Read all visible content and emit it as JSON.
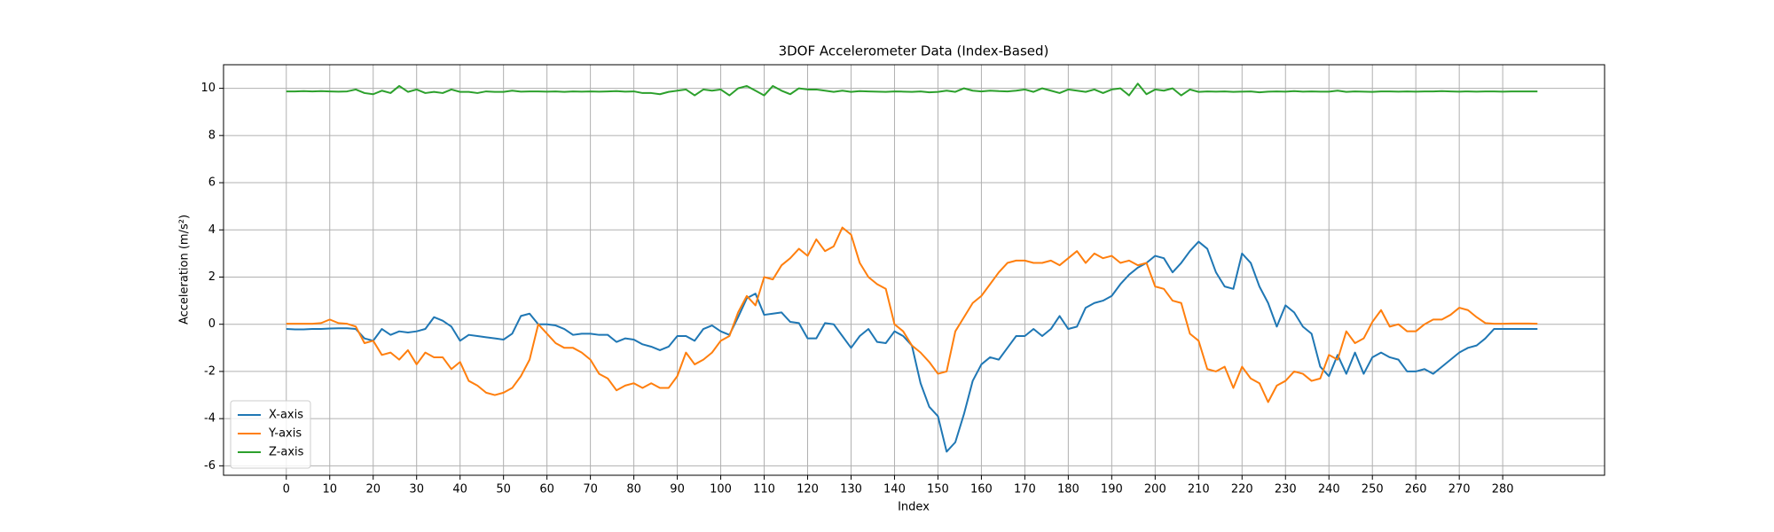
{
  "chart_data": {
    "type": "line",
    "title": "3DOF Accelerometer Data (Index-Based)",
    "x_label": "Index",
    "y_label": "Acceleration (m/s²)",
    "x": [
      0,
      2,
      4,
      6,
      8,
      10,
      12,
      14,
      16,
      18,
      20,
      22,
      24,
      26,
      28,
      30,
      32,
      34,
      36,
      38,
      40,
      42,
      44,
      46,
      48,
      50,
      52,
      54,
      56,
      58,
      60,
      62,
      64,
      66,
      68,
      70,
      72,
      74,
      76,
      78,
      80,
      82,
      84,
      86,
      88,
      90,
      92,
      94,
      96,
      98,
      100,
      102,
      104,
      106,
      108,
      110,
      112,
      114,
      116,
      118,
      120,
      122,
      124,
      126,
      128,
      130,
      132,
      134,
      136,
      138,
      140,
      142,
      144,
      146,
      148,
      150,
      152,
      154,
      156,
      158,
      160,
      162,
      164,
      166,
      168,
      170,
      172,
      174,
      176,
      178,
      180,
      182,
      184,
      186,
      188,
      190,
      192,
      194,
      196,
      198,
      200,
      202,
      204,
      206,
      208,
      210,
      212,
      214,
      216,
      218,
      220,
      222,
      224,
      226,
      228,
      230,
      232,
      234,
      236,
      238,
      240,
      242,
      244,
      246,
      248,
      250,
      252,
      254,
      256,
      258,
      260,
      262,
      264,
      266,
      268,
      270,
      272,
      274,
      276,
      278,
      280,
      282,
      284,
      286,
      288
    ],
    "series": [
      {
        "name": "X-axis",
        "color": "#1f77b4",
        "values": [
          -0.2,
          -0.22,
          -0.22,
          -0.2,
          -0.2,
          -0.18,
          -0.17,
          -0.17,
          -0.2,
          -0.6,
          -0.7,
          -0.2,
          -0.45,
          -0.3,
          -0.35,
          -0.3,
          -0.2,
          0.3,
          0.15,
          -0.1,
          -0.7,
          -0.45,
          -0.5,
          -0.55,
          -0.6,
          -0.65,
          -0.4,
          0.35,
          0.45,
          0.0,
          0.0,
          -0.05,
          -0.2,
          -0.45,
          -0.4,
          -0.4,
          -0.45,
          -0.45,
          -0.75,
          -0.6,
          -0.65,
          -0.85,
          -0.95,
          -1.1,
          -0.95,
          -0.5,
          -0.5,
          -0.7,
          -0.2,
          -0.05,
          -0.3,
          -0.45,
          0.3,
          1.1,
          1.3,
          0.4,
          0.45,
          0.5,
          0.1,
          0.05,
          -0.6,
          -0.6,
          0.05,
          0.0,
          -0.5,
          -1.0,
          -0.5,
          -0.2,
          -0.75,
          -0.8,
          -0.3,
          -0.5,
          -0.9,
          -2.5,
          -3.5,
          -3.9,
          -5.4,
          -5.0,
          -3.8,
          -2.4,
          -1.7,
          -1.4,
          -1.5,
          -1.0,
          -0.5,
          -0.5,
          -0.2,
          -0.5,
          -0.2,
          0.35,
          -0.2,
          -0.1,
          0.7,
          0.9,
          1.0,
          1.2,
          1.7,
          2.1,
          2.4,
          2.6,
          2.9,
          2.8,
          2.2,
          2.6,
          3.1,
          3.5,
          3.2,
          2.2,
          1.6,
          1.5,
          3.0,
          2.6,
          1.6,
          0.9,
          -0.1,
          0.8,
          0.5,
          -0.1,
          -0.4,
          -1.8,
          -2.2,
          -1.3,
          -2.1,
          -1.2,
          -2.1,
          -1.4,
          -1.2,
          -1.4,
          -1.5,
          -2.0,
          -2.0,
          -1.9,
          -2.1,
          -1.8,
          -1.5,
          -1.2,
          -1.0,
          -0.9,
          -0.6,
          -0.2,
          -0.2,
          -0.2,
          -0.2,
          -0.2,
          -0.2
        ]
      },
      {
        "name": "Y-axis",
        "color": "#ff7f0e",
        "values": [
          0.02,
          0.02,
          0.02,
          0.02,
          0.05,
          0.2,
          0.05,
          0.02,
          -0.1,
          -0.8,
          -0.7,
          -1.3,
          -1.2,
          -1.5,
          -1.1,
          -1.7,
          -1.2,
          -1.4,
          -1.4,
          -1.9,
          -1.6,
          -2.4,
          -2.6,
          -2.9,
          -3.0,
          -2.9,
          -2.7,
          -2.2,
          -1.5,
          0.0,
          -0.4,
          -0.8,
          -1.0,
          -1.0,
          -1.2,
          -1.5,
          -2.1,
          -2.3,
          -2.8,
          -2.6,
          -2.5,
          -2.7,
          -2.5,
          -2.7,
          -2.7,
          -2.2,
          -1.2,
          -1.7,
          -1.5,
          -1.2,
          -0.7,
          -0.5,
          0.5,
          1.2,
          0.8,
          2.0,
          1.9,
          2.5,
          2.8,
          3.2,
          2.9,
          3.6,
          3.1,
          3.3,
          4.1,
          3.8,
          2.6,
          2.0,
          1.7,
          1.5,
          0.0,
          -0.3,
          -0.9,
          -1.2,
          -1.6,
          -2.1,
          -2.0,
          -0.3,
          0.3,
          0.9,
          1.2,
          1.7,
          2.2,
          2.6,
          2.7,
          2.7,
          2.6,
          2.6,
          2.7,
          2.5,
          2.8,
          3.1,
          2.6,
          3.0,
          2.8,
          2.9,
          2.6,
          2.7,
          2.5,
          2.6,
          1.6,
          1.5,
          1.0,
          0.9,
          -0.4,
          -0.7,
          -1.9,
          -2.0,
          -1.8,
          -2.7,
          -1.8,
          -2.3,
          -2.5,
          -3.3,
          -2.6,
          -2.4,
          -2.0,
          -2.1,
          -2.4,
          -2.3,
          -1.3,
          -1.5,
          -0.3,
          -0.8,
          -0.6,
          0.1,
          0.6,
          -0.1,
          0.0,
          -0.3,
          -0.3,
          0.0,
          0.2,
          0.2,
          0.4,
          0.7,
          0.6,
          0.3,
          0.05,
          0.02,
          0.02,
          0.03,
          0.03,
          0.03,
          0.02
        ]
      },
      {
        "name": "Z-axis",
        "color": "#2ca02c",
        "values": [
          9.87,
          9.87,
          9.88,
          9.87,
          9.88,
          9.87,
          9.86,
          9.87,
          9.95,
          9.8,
          9.75,
          9.9,
          9.8,
          10.1,
          9.85,
          9.95,
          9.8,
          9.85,
          9.8,
          9.95,
          9.85,
          9.85,
          9.8,
          9.87,
          9.85,
          9.85,
          9.9,
          9.86,
          9.87,
          9.87,
          9.86,
          9.87,
          9.85,
          9.87,
          9.86,
          9.87,
          9.86,
          9.87,
          9.88,
          9.86,
          9.87,
          9.8,
          9.8,
          9.75,
          9.85,
          9.9,
          9.95,
          9.7,
          9.95,
          9.9,
          9.95,
          9.7,
          10.0,
          10.1,
          9.9,
          9.7,
          10.1,
          9.9,
          9.75,
          10.0,
          9.95,
          9.95,
          9.9,
          9.85,
          9.9,
          9.85,
          9.88,
          9.87,
          9.86,
          9.85,
          9.87,
          9.86,
          9.85,
          9.87,
          9.83,
          9.85,
          9.9,
          9.85,
          10.0,
          9.9,
          9.87,
          9.9,
          9.88,
          9.87,
          9.9,
          9.95,
          9.85,
          10.0,
          9.9,
          9.8,
          9.95,
          9.9,
          9.85,
          9.95,
          9.8,
          9.95,
          10.0,
          9.7,
          10.2,
          9.75,
          9.95,
          9.9,
          10.0,
          9.7,
          9.95,
          9.85,
          9.87,
          9.86,
          9.87,
          9.85,
          9.86,
          9.87,
          9.83,
          9.86,
          9.87,
          9.86,
          9.88,
          9.86,
          9.87,
          9.86,
          9.86,
          9.9,
          9.85,
          9.87,
          9.86,
          9.85,
          9.87,
          9.87,
          9.86,
          9.87,
          9.86,
          9.87,
          9.87,
          9.88,
          9.87,
          9.86,
          9.87,
          9.86,
          9.87,
          9.87,
          9.86,
          9.87,
          9.87,
          9.87,
          9.87
        ]
      }
    ],
    "xlim": [
      -14.45,
      303.45
    ],
    "ylim": [
      -6.4,
      11.0
    ],
    "xticks": [
      0,
      10,
      20,
      30,
      40,
      50,
      60,
      70,
      80,
      90,
      100,
      110,
      120,
      130,
      140,
      150,
      160,
      170,
      180,
      190,
      200,
      210,
      220,
      230,
      240,
      250,
      260,
      270,
      280
    ],
    "yticks": [
      -6,
      -4,
      -2,
      0,
      2,
      4,
      6,
      8,
      10
    ],
    "grid": true,
    "legend": "lower left"
  }
}
